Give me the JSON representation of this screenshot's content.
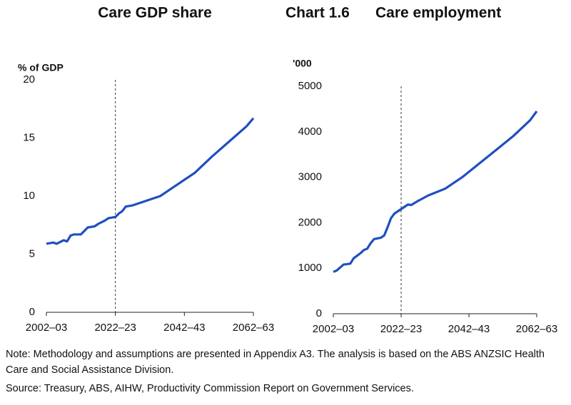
{
  "chart_label": "Chart 1.6",
  "chart_data": [
    {
      "type": "line",
      "title": "Care GDP share",
      "y_label": "% of GDP",
      "x": [
        2002,
        2004,
        2005,
        2007,
        2008,
        2009,
        2010,
        2012,
        2013,
        2014,
        2016,
        2017,
        2019,
        2020,
        2022,
        2023,
        2024,
        2025,
        2027,
        2030,
        2035,
        2037,
        2040,
        2045,
        2050,
        2055,
        2060,
        2062
      ],
      "series": [
        {
          "name": "Care GDP share",
          "color": "#1f4fc0",
          "values": [
            5.9,
            6.0,
            5.9,
            6.2,
            6.1,
            6.6,
            6.7,
            6.7,
            7.0,
            7.3,
            7.4,
            7.6,
            7.9,
            8.1,
            8.2,
            8.5,
            8.7,
            9.1,
            9.2,
            9.5,
            10.0,
            10.4,
            11.0,
            12.0,
            13.4,
            14.7,
            16.0,
            16.7
          ]
        }
      ],
      "xlim": [
        2002,
        2062
      ],
      "ylim": [
        0,
        20
      ],
      "xticks": [
        {
          "value": 2002,
          "label": "2002–03"
        },
        {
          "value": 2022,
          "label": "2022–23"
        },
        {
          "value": 2042,
          "label": "2042–43"
        },
        {
          "value": 2062,
          "label": "2062–63"
        }
      ],
      "yticks": [
        0,
        5,
        10,
        15,
        20
      ],
      "vline": 2022
    },
    {
      "type": "line",
      "title": "Care employment",
      "y_label": "'000",
      "x": [
        2002,
        2003,
        2005,
        2007,
        2008,
        2010,
        2011,
        2012,
        2013,
        2014,
        2016,
        2017,
        2018,
        2019,
        2020,
        2022,
        2024,
        2025,
        2027,
        2030,
        2035,
        2040,
        2045,
        2050,
        2055,
        2060,
        2062
      ],
      "series": [
        {
          "name": "Care employment",
          "color": "#1f4fc0",
          "values": [
            920,
            950,
            1080,
            1100,
            1220,
            1330,
            1400,
            1430,
            1550,
            1640,
            1670,
            1720,
            1900,
            2100,
            2200,
            2300,
            2400,
            2390,
            2480,
            2600,
            2750,
            3000,
            3300,
            3600,
            3900,
            4250,
            4450
          ]
        }
      ],
      "xlim": [
        2002,
        2062
      ],
      "ylim": [
        0,
        5000
      ],
      "xticks": [
        {
          "value": 2002,
          "label": "2002–03"
        },
        {
          "value": 2022,
          "label": "2022–23"
        },
        {
          "value": 2042,
          "label": "2042–43"
        },
        {
          "value": 2062,
          "label": "2062–63"
        }
      ],
      "yticks": [
        0,
        1000,
        2000,
        3000,
        4000,
        5000
      ],
      "vline": 2022
    }
  ],
  "note": "Note: Methodology and assumptions are presented in Appendix A3. The analysis is based on the ABS ANZSIC Health Care and Social Assistance Division.",
  "source": "Source: Treasury, ABS, AIHW, Productivity Commission Report on Government Services."
}
